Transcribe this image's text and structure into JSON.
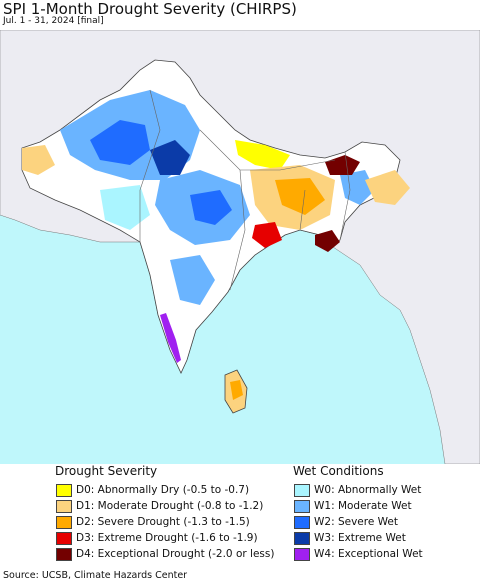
{
  "header": {
    "title": "SPI 1-Month Drought Severity (CHIRPS)",
    "subtitle": "Jul. 1 - 31, 2024 [final]"
  },
  "colors": {
    "ocean": "#bff7fb",
    "land_outside": "#ececf2",
    "land_base": "#ffffff",
    "border": "#555555"
  },
  "legend": {
    "drought": {
      "title": "Drought Severity",
      "items": [
        {
          "code": "D0",
          "label": "D0: Abnormally Dry (-0.5 to -0.7)",
          "color": "#ffff00"
        },
        {
          "code": "D1",
          "label": "D1: Moderate Drought (-0.8 to -1.2)",
          "color": "#fcd37f"
        },
        {
          "code": "D2",
          "label": "D2: Severe Drought (-1.3 to -1.5)",
          "color": "#ffaa00"
        },
        {
          "code": "D3",
          "label": "D3: Extreme Drought (-1.6 to -1.9)",
          "color": "#e60000"
        },
        {
          "code": "D4",
          "label": "D4: Exceptional Drought (-2.0 or less)",
          "color": "#730000"
        }
      ]
    },
    "wet": {
      "title": "Wet Conditions",
      "items": [
        {
          "code": "W0",
          "label": "W0: Abnormally Wet",
          "color": "#aaf5ff"
        },
        {
          "code": "W1",
          "label": "W1: Moderate Wet",
          "color": "#6ab4ff"
        },
        {
          "code": "W2",
          "label": "W2: Severe Wet",
          "color": "#1f6cff"
        },
        {
          "code": "W3",
          "label": "W3: Extreme Wet",
          "color": "#0b3ba8"
        },
        {
          "code": "W4",
          "label": "W4: Exceptional Wet",
          "color": "#a020f0"
        }
      ]
    }
  },
  "footer": {
    "source": "Source: UCSB, Climate Hazards Center"
  }
}
